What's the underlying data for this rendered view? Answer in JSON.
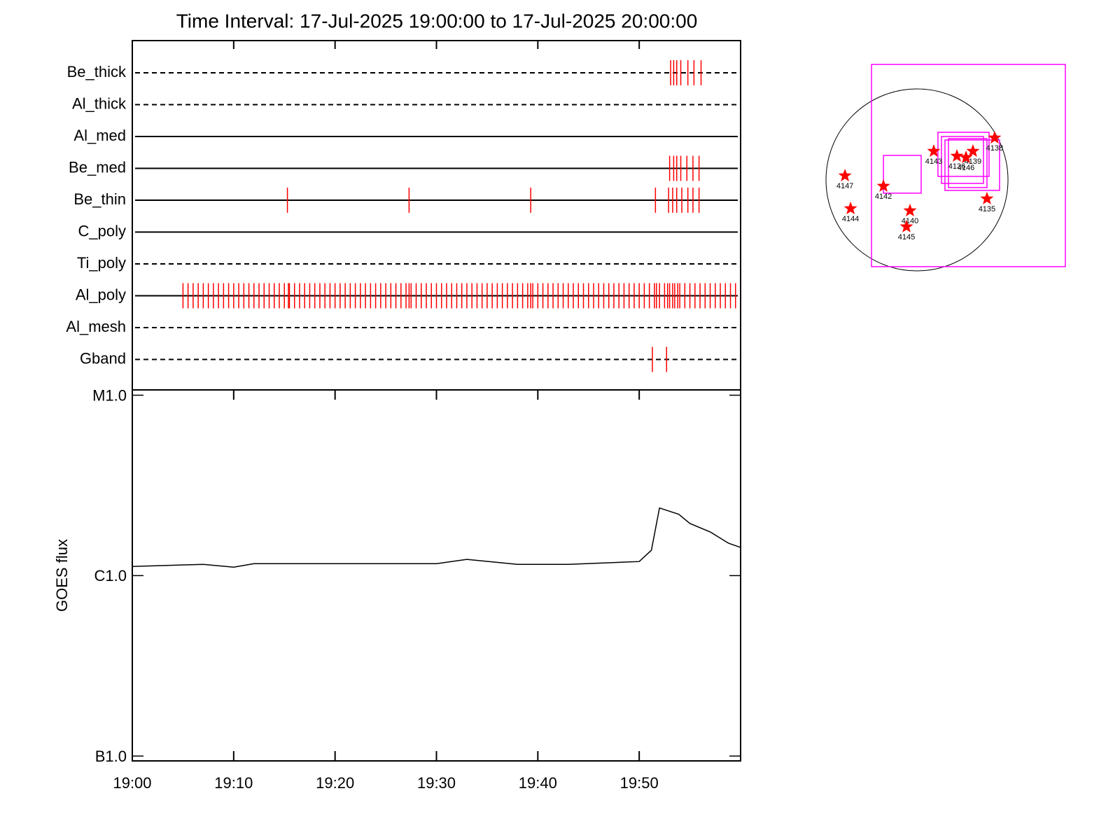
{
  "chart_data": [
    {
      "type": "timeline",
      "title": "Time Interval: 17-Jul-2025 19:00:00 to 17-Jul-2025 20:00:00",
      "xlim": [
        0,
        60
      ],
      "xticks": [
        {
          "value": 0,
          "label": "19:00"
        },
        {
          "value": 10,
          "label": "19:10"
        },
        {
          "value": 20,
          "label": "19:20"
        },
        {
          "value": 30,
          "label": "19:30"
        },
        {
          "value": 40,
          "label": "19:40"
        },
        {
          "value": 50,
          "label": "19:50"
        }
      ],
      "color": "#ff0000",
      "series": [
        {
          "name": "Be_thick",
          "style": "dashed",
          "x": [
            53.1,
            53.4,
            53.7,
            54.1,
            54.8,
            55.4,
            56.1
          ]
        },
        {
          "name": "Al_thick",
          "style": "dashed",
          "x": []
        },
        {
          "name": "Al_med",
          "style": "solid",
          "x": []
        },
        {
          "name": "Be_med",
          "style": "solid",
          "x": [
            53.0,
            53.4,
            53.7,
            54.1,
            54.7,
            55.3,
            55.9
          ]
        },
        {
          "name": "Be_thin",
          "style": "solid",
          "x": [
            15.3,
            27.3,
            39.3,
            51.6,
            52.9,
            53.3,
            53.7,
            54.2,
            54.8,
            55.3,
            55.9
          ]
        },
        {
          "name": "C_poly",
          "style": "solid",
          "x": []
        },
        {
          "name": "Ti_poly",
          "style": "dashed",
          "x": []
        },
        {
          "name": "Al_poly",
          "style": "solid",
          "x": [
            5,
            5.5,
            6,
            6.5,
            7,
            7.5,
            8,
            8.5,
            9,
            9.5,
            10,
            10.5,
            11,
            11.5,
            12,
            12.5,
            13,
            13.5,
            14,
            14.5,
            15,
            15.5,
            16,
            16.5,
            17,
            17.5,
            18,
            18.5,
            19,
            19.5,
            20,
            20.5,
            21,
            21.5,
            22,
            22.5,
            23,
            23.5,
            24,
            24.5,
            25,
            25.5,
            26,
            26.5,
            27,
            27.5,
            28,
            28.5,
            29,
            29.5,
            30,
            30.5,
            31,
            31.5,
            32,
            32.5,
            33,
            33.5,
            34,
            34.5,
            35,
            35.5,
            36,
            36.5,
            37,
            37.5,
            38,
            38.5,
            39,
            39.5,
            40,
            40.5,
            41,
            41.5,
            42,
            42.5,
            43,
            43.5,
            44,
            44.5,
            45,
            45.5,
            46,
            46.5,
            47,
            47.5,
            48,
            48.5,
            49,
            49.5,
            50,
            50.5,
            51,
            51.5,
            52,
            52.5,
            53,
            53.5,
            54,
            54.5,
            55,
            55.5,
            56,
            56.5,
            57,
            57.5,
            58,
            58.5,
            59,
            59.5,
            15.4,
            27.3,
            39.3,
            51.7,
            52.8,
            53.3,
            53.8
          ]
        },
        {
          "name": "Al_mesh",
          "style": "dashed",
          "x": []
        },
        {
          "name": "Gband",
          "style": "dashed",
          "x": [
            51.3,
            52.7
          ]
        }
      ]
    },
    {
      "type": "line",
      "y_label": "GOES flux",
      "log_scale": true,
      "color": "#000000",
      "xlim": [
        0,
        60
      ],
      "xticks": [
        {
          "value": 0,
          "label": "19:00"
        },
        {
          "value": 10,
          "label": "19:10"
        },
        {
          "value": 20,
          "label": "19:20"
        },
        {
          "value": 30,
          "label": "19:30"
        },
        {
          "value": 40,
          "label": "19:40"
        },
        {
          "value": 50,
          "label": "19:50"
        }
      ],
      "ylim": [
        9.4e-08,
        1.07e-05
      ],
      "yticks": [
        {
          "value": 1e-07,
          "label": "B1.0"
        },
        {
          "value": 1e-06,
          "label": "C1.0"
        },
        {
          "value": 1e-05,
          "label": "M1.0"
        }
      ],
      "x": [
        0,
        7,
        10,
        12,
        20,
        30,
        33,
        38,
        43,
        50,
        51.2,
        52,
        53.9,
        55,
        57,
        58.8,
        60
      ],
      "values": [
        1.124e-06,
        1.155e-06,
        1.114e-06,
        1.165e-06,
        1.165e-06,
        1.165e-06,
        1.23e-06,
        1.155e-06,
        1.155e-06,
        1.197e-06,
        1.382e-06,
        2.371e-06,
        2.188e-06,
        1.946e-06,
        1.747e-06,
        1.513e-06,
        1.433e-06
      ]
    },
    {
      "type": "map",
      "disk_radius": 960,
      "color": "#ff0000",
      "box_color": "#ff00ff",
      "labels": [
        "4147",
        "4142",
        "4144",
        "4143",
        "4140",
        "4145",
        "4135",
        "4138",
        "4139",
        "4136",
        "4146"
      ],
      "x": [
        -760,
        -354,
        -701,
        177,
        -74,
        -111,
        738,
        819,
        590,
        421,
        517
      ],
      "y": [
        44,
        -66,
        -303,
        303,
        -325,
        -494,
        -199,
        443,
        303,
        251,
        236
      ],
      "boxes": [
        [
          -480,
          -915,
          1565,
          1218
        ],
        [
          -354,
          -140,
          44,
          258
        ],
        [
          221,
          37,
          760,
          502
        ],
        [
          295,
          -111,
          871,
          421
        ],
        [
          332,
          -81,
          738,
          435
        ],
        [
          258,
          -37,
          701,
          458
        ]
      ]
    }
  ]
}
